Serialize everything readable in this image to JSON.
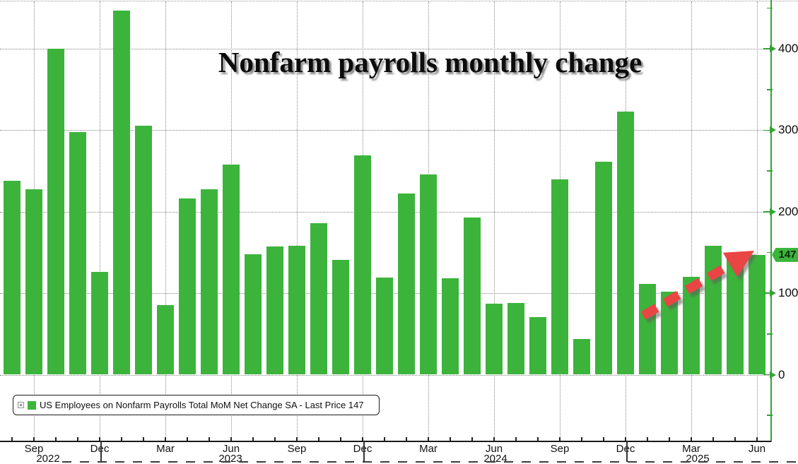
{
  "title": "Nonfarm payrolls monthly change",
  "legend": {
    "label": "US Employees on Nonfarm Payrolls Total MoM Net Change SA - Last Price 147"
  },
  "colors": {
    "bar_green": "#3cb43c",
    "axis_green": "#33a333",
    "arrow_red": "#ea4545",
    "grid_gray": "#858585",
    "last_price_bg": "#3cb43c"
  },
  "chart_data": {
    "type": "bar",
    "series_name": "US Employees on Nonfarm Payrolls Total MoM Net Change SA",
    "unit": "thousands of jobs",
    "x": [
      "Aug 2022",
      "Sep 2022",
      "Oct 2022",
      "Nov 2022",
      "Dec 2022",
      "Jan 2023",
      "Feb 2023",
      "Mar 2023",
      "Apr 2023",
      "May 2023",
      "Jun 2023",
      "Jul 2023",
      "Aug 2023",
      "Sep 2023",
      "Oct 2023",
      "Nov 2023",
      "Dec 2023",
      "Jan 2024",
      "Feb 2024",
      "Mar 2024",
      "Apr 2024",
      "May 2024",
      "Jun 2024",
      "Jul 2024",
      "Aug 2024",
      "Sep 2024",
      "Oct 2024",
      "Nov 2024",
      "Dec 2024",
      "Jan 2025",
      "Feb 2025",
      "Mar 2025",
      "Apr 2025",
      "May 2025",
      "Jun 2025"
    ],
    "values": [
      238,
      228,
      400,
      298,
      126,
      447,
      306,
      85,
      216,
      228,
      258,
      148,
      157,
      158,
      186,
      141,
      269,
      119,
      222,
      246,
      118,
      193,
      87,
      88,
      71,
      240,
      44,
      261,
      323,
      111,
      102,
      120,
      158,
      144,
      147
    ],
    "yticks": [
      0,
      100,
      200,
      300,
      400
    ],
    "ytick_minors": [
      -50,
      50,
      150,
      250,
      350,
      450
    ],
    "ylim": [
      -82,
      460
    ],
    "xtick_labels": [
      "Sep",
      "Dec",
      "Mar",
      "Jun",
      "Sep",
      "Dec",
      "Mar",
      "Jun",
      "Sep",
      "Dec",
      "Mar",
      "Jun"
    ],
    "year_labels": [
      "2022",
      "2023",
      "2024",
      "2025"
    ],
    "last_price": 147,
    "last_price_label": "147",
    "grid": "dotted, horizontal every 100 and vertical every quarter",
    "legend_position": "bottom-left",
    "annotation": "thick red dashed arrow rising toward the last bar (147)"
  }
}
